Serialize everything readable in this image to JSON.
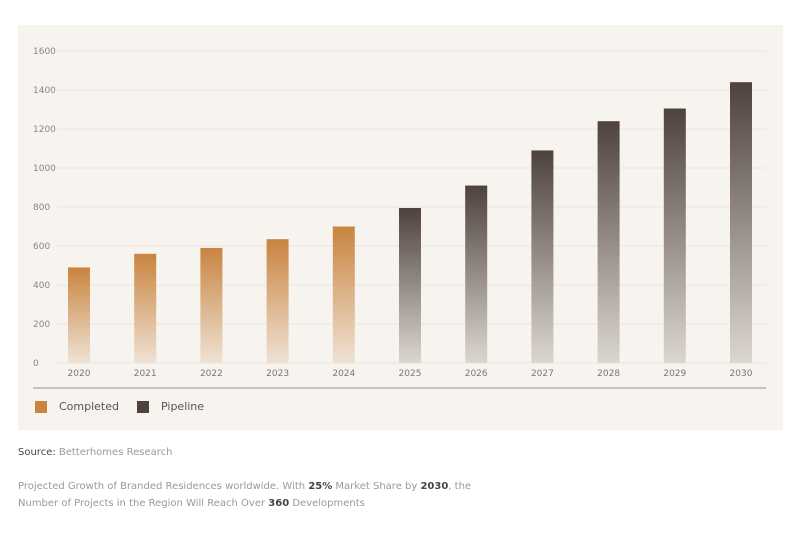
{
  "chart_data": {
    "type": "bar",
    "categories": [
      "2020",
      "2021",
      "2022",
      "2023",
      "2024",
      "2025",
      "2026",
      "2027",
      "2028",
      "2029",
      "2030"
    ],
    "series": [
      {
        "name": "Completed",
        "color": "#c98440",
        "values": [
          490,
          560,
          590,
          635,
          700,
          null,
          null,
          null,
          null,
          null,
          null
        ]
      },
      {
        "name": "Pipeline",
        "color": "#4e423d",
        "values": [
          null,
          null,
          null,
          null,
          null,
          795,
          910,
          1090,
          1240,
          1305,
          1440
        ]
      }
    ],
    "ylim": [
      0,
      1600
    ],
    "yticks": [
      0,
      200,
      400,
      600,
      800,
      1000,
      1200,
      1400,
      1600
    ],
    "grid": true,
    "legend": "bottom-left",
    "title": "",
    "xlabel": "",
    "ylabel": ""
  },
  "legend": {
    "completed": "Completed",
    "pipeline": "Pipeline"
  },
  "source": {
    "label": "Source:",
    "value": " Betterhomes Research"
  },
  "caption": {
    "p1": "Projected Growth of Branded Residences worldwide. With ",
    "b1": "25%",
    "p2": " Market Share by ",
    "b2": "2030",
    "p3": ", the Number of Projects in the Region Will Reach Over ",
    "b3": "360",
    "p4": " Developments"
  }
}
